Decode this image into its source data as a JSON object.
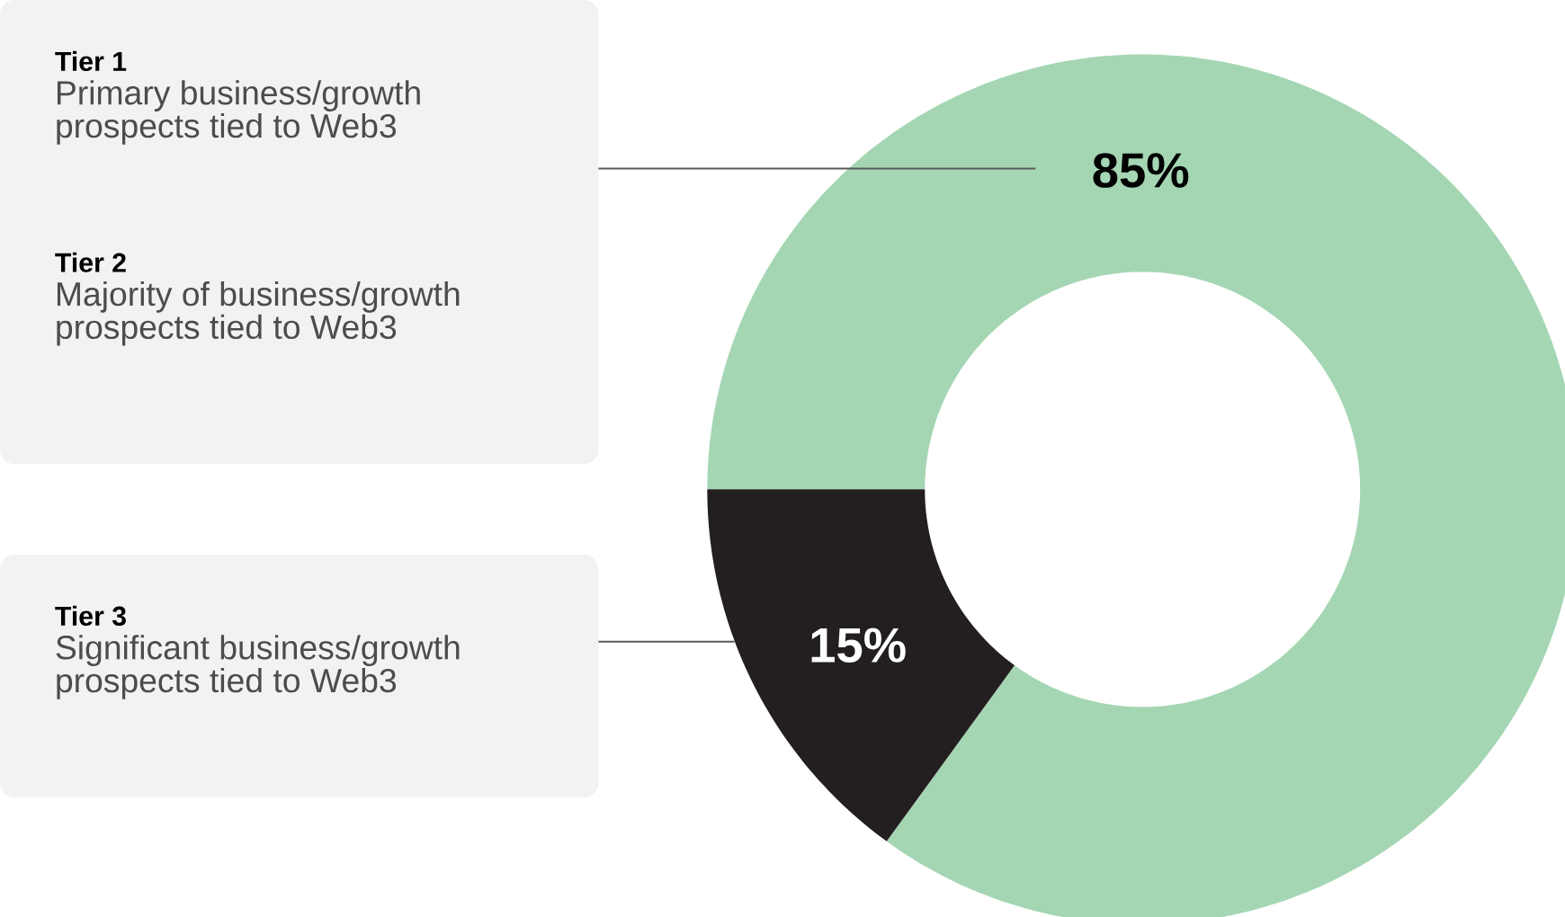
{
  "chart_data": {
    "type": "donut",
    "categories": [
      null,
      null
    ],
    "values": [
      85,
      15
    ],
    "colors": [
      "#a5d6b4",
      "#231f20"
    ],
    "value_labels": [
      "85%",
      "15%"
    ],
    "annotations": [
      "Tier 1",
      "Primary business/growth prospects tied to Web3",
      "Tier 2",
      "Majority of business/growth prospects tied to Web3",
      "Tier 3",
      "Significant business/growth prospects tied to Web3"
    ]
  }
}
